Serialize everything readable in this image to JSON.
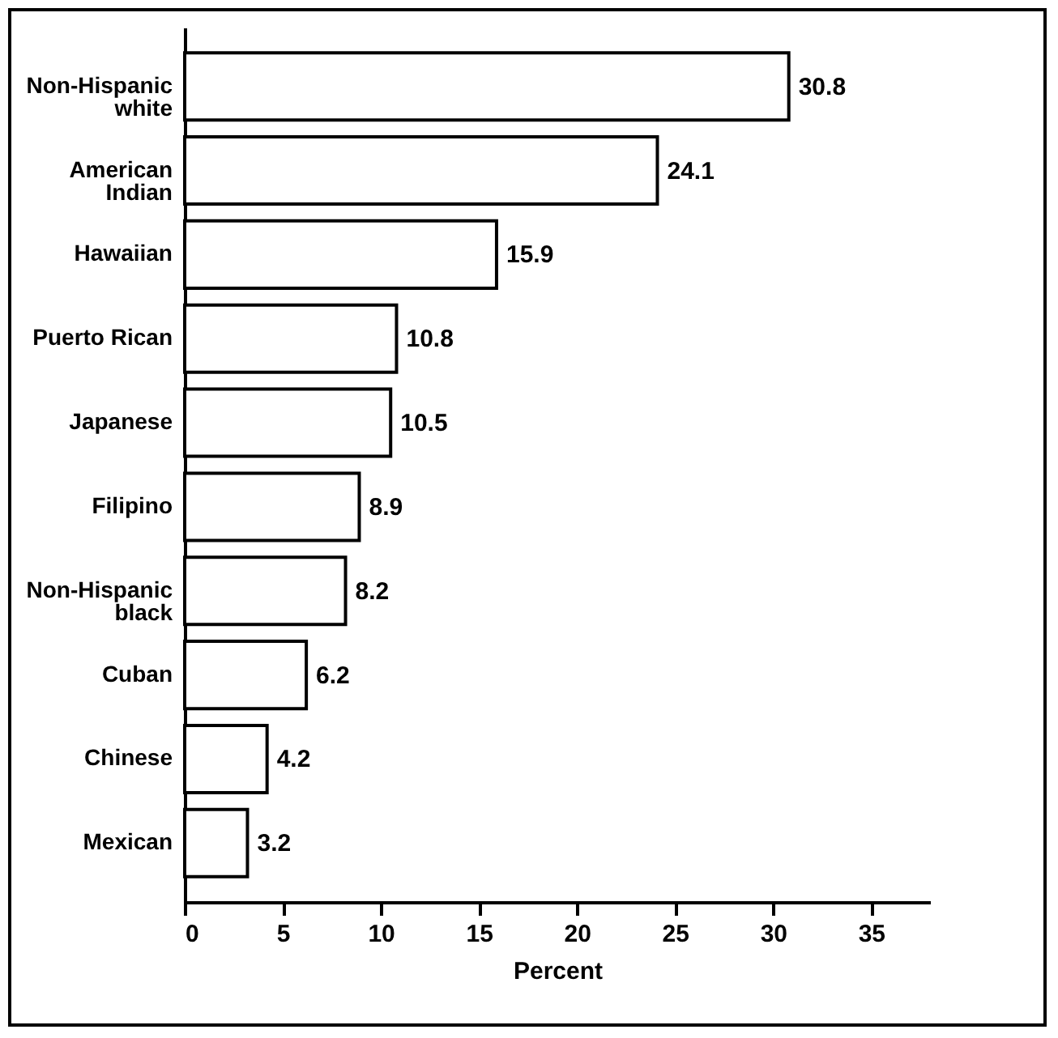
{
  "chart_data": {
    "type": "bar",
    "orientation": "horizontal",
    "xlabel": "Percent",
    "categories": [
      "Non-Hispanic white",
      "American Indian",
      "Hawaiian",
      "Puerto Rican",
      "Japanese",
      "Filipino",
      "Non-Hispanic black",
      "Cuban",
      "Chinese",
      "Mexican"
    ],
    "values": [
      30.8,
      24.1,
      15.9,
      10.8,
      10.5,
      8.9,
      8.2,
      6.2,
      4.2,
      3.2
    ],
    "color": "#ffffff",
    "xlim": [
      0,
      38
    ],
    "xticks": [
      0,
      5,
      10,
      15,
      20,
      25,
      30,
      35
    ],
    "data_labels": true,
    "grid": false
  }
}
